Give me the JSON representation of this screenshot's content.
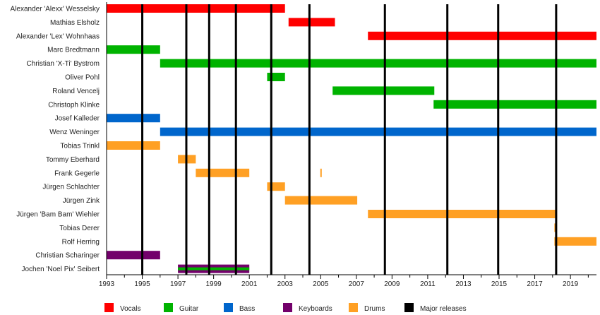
{
  "chart_data": {
    "type": "timeline",
    "xlim": [
      1993,
      2020.46
    ],
    "x_ticks": [
      1993,
      1995,
      1997,
      1999,
      2001,
      2003,
      2005,
      2007,
      2009,
      2011,
      2013,
      2015,
      2017,
      2019
    ],
    "roles": {
      "vocals": {
        "label": "Vocals",
        "color": "#ff0000"
      },
      "guitar": {
        "label": "Guitar",
        "color": "#00b300"
      },
      "bass": {
        "label": "Bass",
        "color": "#0066cc"
      },
      "keyboards": {
        "label": "Keyboards",
        "color": "#73006b"
      },
      "drums": {
        "label": "Drums",
        "color": "#ffa024"
      },
      "releases": {
        "label": "Major releases",
        "color": "#000000"
      }
    },
    "legend_order": [
      "vocals",
      "guitar",
      "bass",
      "keyboards",
      "drums",
      "releases"
    ],
    "major_releases": [
      1995.0,
      1997.47,
      1998.75,
      2000.25,
      2002.23,
      2004.37,
      2008.6,
      2012.1,
      2014.95,
      2018.2
    ],
    "members": [
      {
        "name": "Alexander 'Alexx' Wesselsky",
        "spans": [
          {
            "role": "vocals",
            "start": 1993,
            "end": 2003.0
          }
        ]
      },
      {
        "name": "Mathias Elsholz",
        "spans": [
          {
            "role": "vocals",
            "start": 2003.2,
            "end": 2005.8
          }
        ]
      },
      {
        "name": "Alexander 'Lex' Wohnhaas",
        "spans": [
          {
            "role": "vocals",
            "start": 2007.65,
            "end": 2020.46
          }
        ]
      },
      {
        "name": "Marc Bredtmann",
        "spans": [
          {
            "role": "guitar",
            "start": 1993,
            "end": 1996.0
          }
        ]
      },
      {
        "name": "Christian 'X-Ti' Bystrom",
        "spans": [
          {
            "role": "guitar",
            "start": 1996.0,
            "end": 2020.46
          }
        ]
      },
      {
        "name": "Oliver Pohl",
        "spans": [
          {
            "role": "guitar",
            "start": 2002.0,
            "end": 2003.0
          }
        ]
      },
      {
        "name": "Roland Vencelj",
        "spans": [
          {
            "role": "guitar",
            "start": 2005.67,
            "end": 2011.37
          }
        ]
      },
      {
        "name": "Christoph Klinke",
        "spans": [
          {
            "role": "guitar",
            "start": 2011.33,
            "end": 2020.46
          }
        ]
      },
      {
        "name": "Josef Kalleder",
        "spans": [
          {
            "role": "bass",
            "start": 1993,
            "end": 1996.0
          }
        ]
      },
      {
        "name": "Wenz Weninger",
        "spans": [
          {
            "role": "bass",
            "start": 1996.0,
            "end": 2020.46
          }
        ]
      },
      {
        "name": "Tobias Trinkl",
        "spans": [
          {
            "role": "drums",
            "start": 1993,
            "end": 1996.0
          }
        ]
      },
      {
        "name": "Tommy Eberhard",
        "spans": [
          {
            "role": "drums",
            "start": 1997.0,
            "end": 1998.0
          }
        ]
      },
      {
        "name": "Frank Gegerle",
        "spans": [
          {
            "role": "drums",
            "start": 1998.0,
            "end": 2001.0
          },
          {
            "role": "drums",
            "start": 2004.98,
            "end": 2005.06
          }
        ]
      },
      {
        "name": "Jürgen Schlachter",
        "spans": [
          {
            "role": "drums",
            "start": 2002.0,
            "end": 2003.0
          }
        ]
      },
      {
        "name": "Jürgen Zink",
        "spans": [
          {
            "role": "drums",
            "start": 2003.0,
            "end": 2007.05
          }
        ]
      },
      {
        "name": "Jürgen 'Bam Bam' Wiehler",
        "spans": [
          {
            "role": "drums",
            "start": 2007.65,
            "end": 2018.25
          }
        ]
      },
      {
        "name": "Tobias Derer",
        "spans": [
          {
            "role": "drums",
            "start": 2018.1,
            "end": 2018.2
          }
        ]
      },
      {
        "name": "Rolf Herring",
        "spans": [
          {
            "role": "drums",
            "start": 2018.1,
            "end": 2020.46
          }
        ]
      },
      {
        "name": "Christian Scharinger",
        "spans": [
          {
            "role": "keyboards",
            "start": 1993,
            "end": 1996.0
          }
        ]
      },
      {
        "name": "Jochen 'Noel Pix' Seibert",
        "spans": [
          {
            "role": "keyboards",
            "start": 1997.0,
            "end": 2001.0
          },
          {
            "role": "guitar",
            "start": 1997.0,
            "end": 2001.0,
            "stripe": true
          }
        ]
      }
    ]
  }
}
